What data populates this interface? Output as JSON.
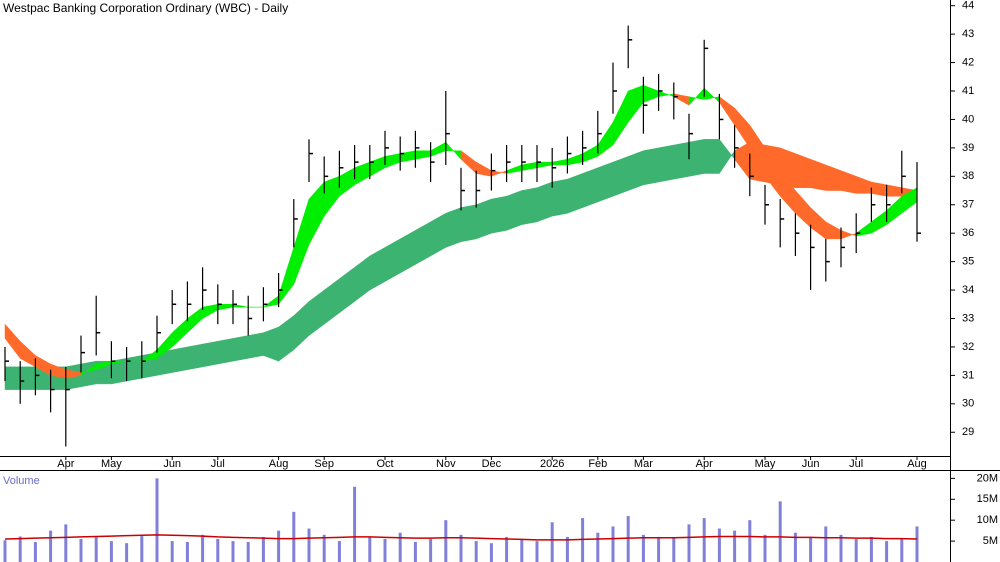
{
  "chart_data": {
    "type": "candlestick",
    "title": "Westpac Banking Corporation Ordinary (WBC) - Daily",
    "categories": [
      null,
      null,
      null,
      null,
      "Apr",
      null,
      null,
      "May",
      null,
      null,
      null,
      "Jun",
      null,
      null,
      "Jul",
      null,
      null,
      null,
      "Aug",
      null,
      null,
      "Sep",
      null,
      null,
      null,
      "Oct",
      null,
      null,
      null,
      "Nov",
      null,
      null,
      "Dec",
      null,
      null,
      null,
      "2026",
      null,
      null,
      "Feb",
      null,
      null,
      "Mar",
      null,
      null,
      null,
      "Apr",
      null,
      null,
      null,
      "May",
      null,
      null,
      "Jun",
      null,
      null,
      "Jul",
      null,
      null,
      null,
      "Aug"
    ],
    "high": [
      32.0,
      31.5,
      31.6,
      31.2,
      31.3,
      32.4,
      33.8,
      32.2,
      32.0,
      32.2,
      33.1,
      34.0,
      34.3,
      34.8,
      34.2,
      34.0,
      33.8,
      34.1,
      34.6,
      37.2,
      39.3,
      38.7,
      38.9,
      39.1,
      39.1,
      39.6,
      39.4,
      39.6,
      39.2,
      41.0,
      38.3,
      38.2,
      38.8,
      39.1,
      39.1,
      39.1,
      39.0,
      39.4,
      39.6,
      40.3,
      42.0,
      43.3,
      41.5,
      41.6,
      41.3,
      40.2,
      42.8,
      40.9,
      39.8,
      38.8,
      37.7,
      37.2,
      36.7,
      36.3,
      35.8,
      36.2,
      36.7,
      37.6,
      37.7,
      38.9,
      38.5
    ],
    "low": [
      30.8,
      30.0,
      30.3,
      29.7,
      28.5,
      31.1,
      31.7,
      30.9,
      30.8,
      30.9,
      31.8,
      32.8,
      32.9,
      33.3,
      32.8,
      32.8,
      32.4,
      32.9,
      33.4,
      35.5,
      37.8,
      37.4,
      37.6,
      37.9,
      37.9,
      38.4,
      38.2,
      38.3,
      37.8,
      38.4,
      36.8,
      36.9,
      37.5,
      37.8,
      37.8,
      37.8,
      37.6,
      38.1,
      38.4,
      38.8,
      40.2,
      41.8,
      39.5,
      40.3,
      40.0,
      38.6,
      40.8,
      39.3,
      38.3,
      37.3,
      36.3,
      35.5,
      35.2,
      34.0,
      34.3,
      34.8,
      35.3,
      36.4,
      36.4,
      37.4,
      35.7
    ],
    "close": [
      31.5,
      30.8,
      31.0,
      30.5,
      30.5,
      31.8,
      32.5,
      31.5,
      31.5,
      31.5,
      32.5,
      33.5,
      33.5,
      34.0,
      33.5,
      33.5,
      33.0,
      33.5,
      34.0,
      36.5,
      38.8,
      38.0,
      38.3,
      38.5,
      38.5,
      39.0,
      38.8,
      39.0,
      38.5,
      39.5,
      37.5,
      37.5,
      38.2,
      38.5,
      38.5,
      38.5,
      38.3,
      38.8,
      39.0,
      39.5,
      41.0,
      42.8,
      40.5,
      41.0,
      40.8,
      39.5,
      42.5,
      40.0,
      39.0,
      38.0,
      37.0,
      36.5,
      36.0,
      35.5,
      35.0,
      35.5,
      36.0,
      37.0,
      37.0,
      38.0,
      36.0
    ],
    "color": "#000000",
    "short_ribbon": {
      "a": [
        32.3,
        31.6,
        31.3,
        31.0,
        30.9,
        31.0,
        31.4,
        31.5,
        31.5,
        31.5,
        31.9,
        32.5,
        33.0,
        33.4,
        33.5,
        33.5,
        33.4,
        33.4,
        33.8,
        35.5,
        37.2,
        37.8,
        38.0,
        38.3,
        38.5,
        38.7,
        38.8,
        38.9,
        38.9,
        39.2,
        38.6,
        38.1,
        38.0,
        38.2,
        38.4,
        38.5,
        38.5,
        38.6,
        38.8,
        39.1,
        39.9,
        41.0,
        41.2,
        41.0,
        40.8,
        40.5,
        41.1,
        40.6,
        39.8,
        39.0,
        38.0,
        37.3,
        36.7,
        36.2,
        35.8,
        35.8,
        36.0,
        36.4,
        36.8,
        37.3,
        37.6
      ],
      "b": [
        32.8,
        32.2,
        31.7,
        31.4,
        31.2,
        31.1,
        31.2,
        31.4,
        31.5,
        31.5,
        31.6,
        32.0,
        32.5,
        33.0,
        33.3,
        33.4,
        33.4,
        33.4,
        33.5,
        34.2,
        35.6,
        36.6,
        37.3,
        37.7,
        38.0,
        38.3,
        38.5,
        38.6,
        38.7,
        38.9,
        38.9,
        38.5,
        38.2,
        38.1,
        38.2,
        38.3,
        38.4,
        38.4,
        38.5,
        38.7,
        39.1,
        39.9,
        40.6,
        40.8,
        40.9,
        40.8,
        40.7,
        40.8,
        40.4,
        39.8,
        39.0,
        38.2,
        37.5,
        36.9,
        36.4,
        36.1,
        35.9,
        36.0,
        36.3,
        36.7,
        37.1
      ],
      "up_color": "#00ee00",
      "down_color": "#ff6a2a"
    },
    "long_ribbon": {
      "a": [
        31.3,
        31.3,
        31.3,
        31.3,
        31.3,
        31.4,
        31.5,
        31.5,
        31.6,
        31.7,
        31.8,
        31.9,
        32.0,
        32.1,
        32.2,
        32.3,
        32.4,
        32.5,
        32.7,
        33.1,
        33.6,
        34.0,
        34.4,
        34.8,
        35.2,
        35.5,
        35.8,
        36.1,
        36.4,
        36.7,
        36.9,
        37.0,
        37.2,
        37.3,
        37.5,
        37.6,
        37.8,
        37.9,
        38.1,
        38.3,
        38.5,
        38.7,
        38.9,
        39.0,
        39.1,
        39.2,
        39.3,
        39.3,
        38.6,
        37.9,
        37.8,
        37.7,
        37.6,
        37.6,
        37.5,
        37.5,
        37.4,
        37.4,
        37.3,
        37.3,
        37.3
      ],
      "b": [
        30.5,
        30.5,
        30.5,
        30.5,
        30.5,
        30.6,
        30.7,
        30.7,
        30.8,
        30.9,
        31.0,
        31.1,
        31.2,
        31.3,
        31.4,
        31.5,
        31.6,
        31.7,
        31.5,
        31.9,
        32.4,
        32.8,
        33.2,
        33.6,
        34.0,
        34.3,
        34.6,
        34.9,
        35.2,
        35.5,
        35.7,
        35.8,
        36.0,
        36.1,
        36.3,
        36.4,
        36.6,
        36.7,
        36.9,
        37.1,
        37.3,
        37.5,
        37.7,
        37.8,
        37.9,
        38.0,
        38.1,
        38.1,
        38.9,
        39.2,
        39.1,
        39.0,
        38.8,
        38.6,
        38.4,
        38.2,
        38.0,
        37.8,
        37.7,
        37.6,
        37.5
      ],
      "up_color": "#3cb371",
      "down_color": "#ff6a2a"
    },
    "ylim": [
      28.2,
      44.2
    ],
    "yticks": [
      29,
      30,
      31,
      32,
      33,
      34,
      35,
      36,
      37,
      38,
      39,
      40,
      41,
      42,
      43,
      44
    ],
    "volume": {
      "label": "Volume",
      "values": [
        5200000,
        6100000,
        4800000,
        7500000,
        9000000,
        5500000,
        6000000,
        5000000,
        4500000,
        6200000,
        20000000,
        5000000,
        4800000,
        6500000,
        5500000,
        5000000,
        4800000,
        6000000,
        7500000,
        12000000,
        8000000,
        6500000,
        5000000,
        18000000,
        6000000,
        5500000,
        7000000,
        4800000,
        5500000,
        10000000,
        6500000,
        5000000,
        4500000,
        6000000,
        5500000,
        5000000,
        9500000,
        6000000,
        10500000,
        7000000,
        8500000,
        11000000,
        6500000,
        6000000,
        5800000,
        9000000,
        10500000,
        8000000,
        7500000,
        10000000,
        6500000,
        14500000,
        7000000,
        6000000,
        8500000,
        6500000,
        5500000,
        6000000,
        5000000,
        5500000,
        8500000
      ],
      "color": "#8080d8",
      "average": [
        5500000,
        5600000,
        5700000,
        5800000,
        5900000,
        6000000,
        6100000,
        6200000,
        6300000,
        6400000,
        6500000,
        6400000,
        6300000,
        6200000,
        6000000,
        5900000,
        5800000,
        5700000,
        5600000,
        5600000,
        5700000,
        5800000,
        5900000,
        6000000,
        6000000,
        5900000,
        5800000,
        5700000,
        5700000,
        5800000,
        5800000,
        5700000,
        5600000,
        5500000,
        5400000,
        5300000,
        5300000,
        5300000,
        5400000,
        5500000,
        5600000,
        5700000,
        5800000,
        5800000,
        5800000,
        5900000,
        6000000,
        6100000,
        6100000,
        6100000,
        6000000,
        6000000,
        5900000,
        5900000,
        5800000,
        5800000,
        5700000,
        5700000,
        5600000,
        5600000,
        5500000
      ],
      "average_color": "#cc0000",
      "ylim": [
        0,
        22000000
      ],
      "yticks": [
        {
          "value": 5000000,
          "label": "5M"
        },
        {
          "value": 10000000,
          "label": "10M"
        },
        {
          "value": 15000000,
          "label": "15M"
        },
        {
          "value": 20000000,
          "label": "20M"
        }
      ]
    }
  }
}
